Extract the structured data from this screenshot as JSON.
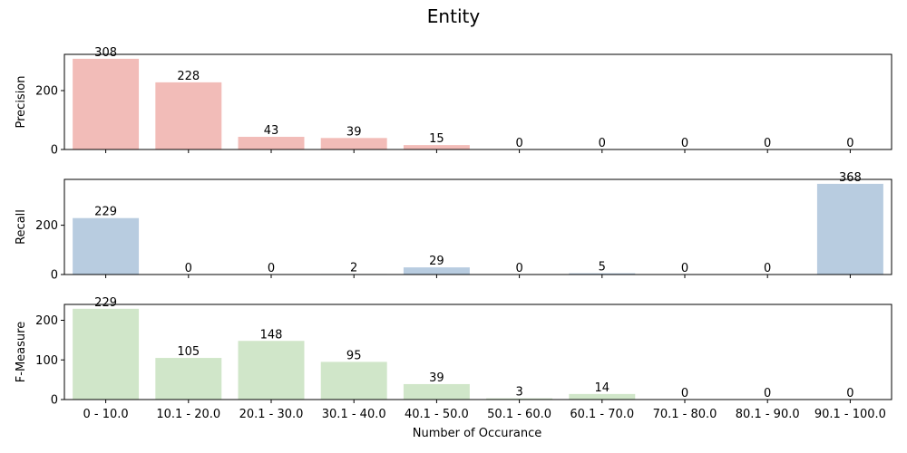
{
  "chart_data": {
    "type": "bar",
    "title": "Entity",
    "xlabel": "Number of Occurance",
    "categories": [
      "0 - 10.0",
      "10.1 - 20.0",
      "20.1 - 30.0",
      "30.1 - 40.0",
      "40.1 - 50.0",
      "50.1 - 60.0",
      "60.1 - 70.0",
      "70.1 - 80.0",
      "80.1 - 90.0",
      "90.1 - 100.0"
    ],
    "panels": [
      {
        "ylabel": "Precision",
        "values": [
          308,
          228,
          43,
          39,
          15,
          0,
          0,
          0,
          0,
          0
        ],
        "ylim": [
          0,
          323
        ],
        "yticks": [
          0,
          200
        ],
        "color": "#f2bcb8"
      },
      {
        "ylabel": "Recall",
        "values": [
          229,
          0,
          0,
          2,
          29,
          0,
          5,
          0,
          0,
          368
        ],
        "ylim": [
          0,
          386
        ],
        "yticks": [
          0,
          200
        ],
        "color": "#b8cce0"
      },
      {
        "ylabel": "F-Measure",
        "values": [
          229,
          105,
          148,
          95,
          39,
          3,
          14,
          0,
          0,
          0
        ],
        "ylim": [
          0,
          240
        ],
        "yticks": [
          0,
          100,
          200
        ],
        "color": "#d0e6c9"
      }
    ],
    "grid": false,
    "shared_x": true
  }
}
